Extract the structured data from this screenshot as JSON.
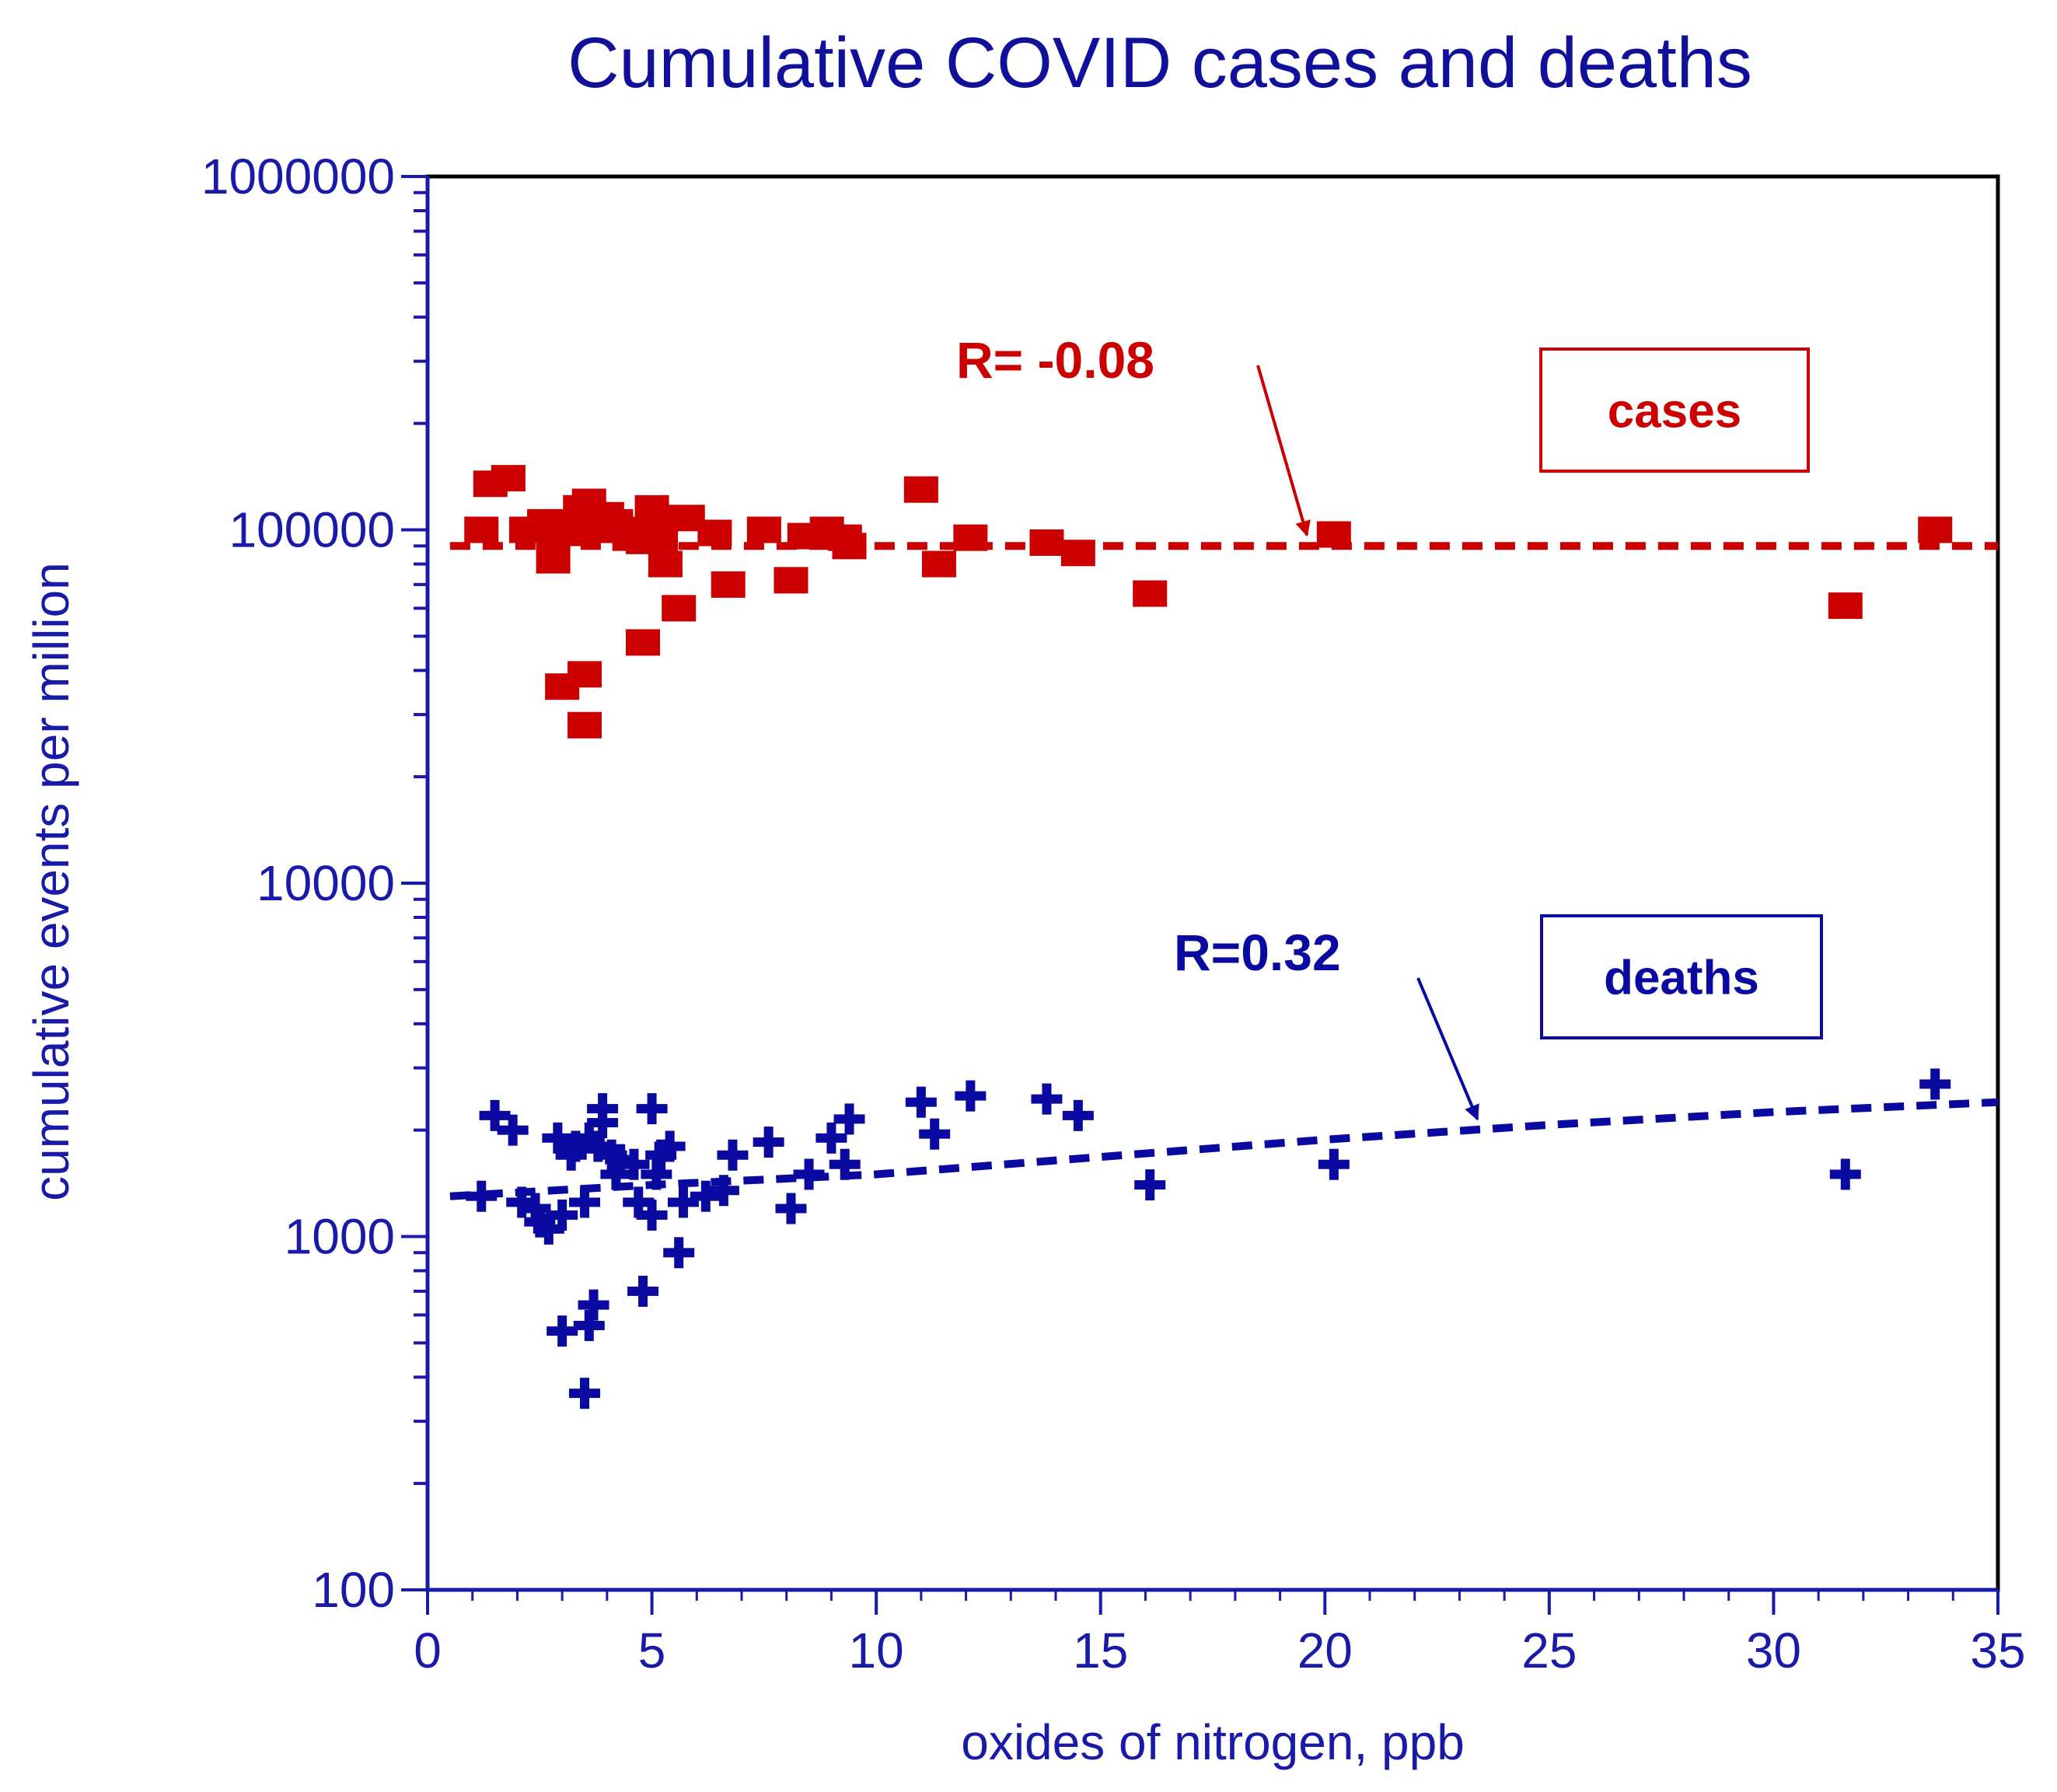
{
  "chart_data": {
    "type": "scatter",
    "title": "Cumulative COVID cases and deaths",
    "xlabel": "oxides of nitrogen, ppb",
    "ylabel": "cumulative events per million",
    "xlim": [
      0,
      35
    ],
    "ylim": [
      100,
      1000000
    ],
    "yscale": "log",
    "x_ticks": [
      "0",
      "5",
      "10",
      "15",
      "20",
      "25",
      "30",
      "35"
    ],
    "y_ticks": [
      "100",
      "1000",
      "10000",
      "100000",
      "1000000"
    ],
    "colors": {
      "axis": "#1a1aa8",
      "cases": "#cc0000",
      "deaths": "#0a0aa0",
      "frame": "#000000"
    },
    "series": [
      {
        "name": "cases",
        "marker": "square",
        "color": "#cc0000",
        "legend": "cases",
        "r_label": "R= -0.08",
        "fit": [
          [
            0.5,
            90000
          ],
          [
            35,
            90000
          ]
        ],
        "arrow_to": [
          19.6,
          90000
        ],
        "points": [
          [
            1.2,
            100000
          ],
          [
            1.4,
            135000
          ],
          [
            1.8,
            140000
          ],
          [
            2.2,
            100000
          ],
          [
            2.6,
            105000
          ],
          [
            2.8,
            95000
          ],
          [
            2.8,
            82000
          ],
          [
            3.0,
            105000
          ],
          [
            3.0,
            36000
          ],
          [
            3.2,
            98000
          ],
          [
            3.4,
            115000
          ],
          [
            3.5,
            39000
          ],
          [
            3.5,
            28000
          ],
          [
            3.6,
            120000
          ],
          [
            3.8,
            100000
          ],
          [
            4.0,
            110000
          ],
          [
            4.2,
            105000
          ],
          [
            4.5,
            95000
          ],
          [
            4.6,
            100000
          ],
          [
            4.8,
            93000
          ],
          [
            4.8,
            48000
          ],
          [
            5.0,
            115000
          ],
          [
            5.1,
            108000
          ],
          [
            5.2,
            95000
          ],
          [
            5.3,
            80000
          ],
          [
            5.6,
            60000
          ],
          [
            5.8,
            108000
          ],
          [
            6.4,
            98000
          ],
          [
            6.7,
            70000
          ],
          [
            7.5,
            100000
          ],
          [
            8.1,
            72000
          ],
          [
            8.4,
            96000
          ],
          [
            8.9,
            100000
          ],
          [
            9.3,
            95000
          ],
          [
            9.4,
            90000
          ],
          [
            11.0,
            130000
          ],
          [
            11.4,
            80000
          ],
          [
            12.1,
            95000
          ],
          [
            13.8,
            92000
          ],
          [
            14.5,
            86000
          ],
          [
            16.1,
            66000
          ],
          [
            20.2,
            97000
          ],
          [
            31.6,
            61000
          ],
          [
            33.6,
            100000
          ]
        ]
      },
      {
        "name": "deaths",
        "marker": "plus",
        "color": "#0a0aa0",
        "legend": "deaths",
        "r_label": "R=0.32",
        "fit": [
          [
            0.5,
            1300
          ],
          [
            5,
            1400
          ],
          [
            10,
            1500
          ],
          [
            15,
            1680
          ],
          [
            20,
            1880
          ],
          [
            25,
            2070
          ],
          [
            30,
            2250
          ],
          [
            35,
            2400
          ]
        ],
        "arrow_to": [
          23.4,
          2000
        ],
        "points": [
          [
            1.2,
            1300
          ],
          [
            1.5,
            2200
          ],
          [
            1.9,
            2000
          ],
          [
            2.1,
            1250
          ],
          [
            2.4,
            1200
          ],
          [
            2.5,
            1100
          ],
          [
            2.7,
            1050
          ],
          [
            2.9,
            1900
          ],
          [
            3.0,
            1150
          ],
          [
            3.0,
            540
          ],
          [
            3.2,
            1700
          ],
          [
            3.3,
            1800
          ],
          [
            3.5,
            1250
          ],
          [
            3.5,
            360
          ],
          [
            3.6,
            1900
          ],
          [
            3.6,
            560
          ],
          [
            3.7,
            640
          ],
          [
            3.8,
            1800
          ],
          [
            3.9,
            2300
          ],
          [
            3.9,
            2100
          ],
          [
            4.1,
            1700
          ],
          [
            4.2,
            1500
          ],
          [
            4.3,
            1650
          ],
          [
            4.6,
            1600
          ],
          [
            4.7,
            1250
          ],
          [
            4.8,
            700
          ],
          [
            5.0,
            2300
          ],
          [
            5.0,
            1150
          ],
          [
            5.1,
            1500
          ],
          [
            5.2,
            1700
          ],
          [
            5.4,
            1800
          ],
          [
            5.6,
            900
          ],
          [
            5.7,
            1250
          ],
          [
            6.2,
            1300
          ],
          [
            6.6,
            1350
          ],
          [
            6.8,
            1700
          ],
          [
            7.6,
            1850
          ],
          [
            8.1,
            1200
          ],
          [
            8.5,
            1500
          ],
          [
            9.0,
            1900
          ],
          [
            9.3,
            1600
          ],
          [
            9.4,
            2150
          ],
          [
            11.0,
            2400
          ],
          [
            11.3,
            1950
          ],
          [
            12.1,
            2500
          ],
          [
            13.8,
            2450
          ],
          [
            14.5,
            2200
          ],
          [
            16.1,
            1400
          ],
          [
            20.2,
            1600
          ],
          [
            31.6,
            1500
          ],
          [
            33.6,
            2700
          ]
        ]
      }
    ]
  }
}
